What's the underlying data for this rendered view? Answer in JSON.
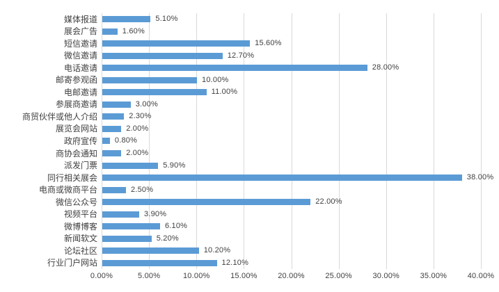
{
  "chart_data": {
    "type": "bar",
    "orientation": "horizontal",
    "title": "",
    "xlabel": "",
    "ylabel": "",
    "xlim": [
      0,
      40
    ],
    "grid": true,
    "legend": false,
    "bar_color": "#5b9bd5",
    "gridline_color": "#d9d9d9",
    "text_color": "#404040",
    "x_ticks": [
      "0.00%",
      "5.00%",
      "10.00%",
      "15.00%",
      "20.00%",
      "25.00%",
      "30.00%",
      "35.00%",
      "40.00%"
    ],
    "x_tick_values": [
      0,
      5,
      10,
      15,
      20,
      25,
      30,
      35,
      40
    ],
    "categories": [
      "媒体报道",
      "展会广告",
      "短信邀请",
      "微信邀请",
      "电话邀请",
      "邮寄参观函",
      "电邮邀请",
      "参展商邀请",
      "商贸伙伴或他人介绍",
      "展览会网站",
      "政府宣传",
      "商协会通知",
      "派发门票",
      "同行相关展会",
      "电商或微商平台",
      "微信公众号",
      "视频平台",
      "微博博客",
      "新闻软文",
      "论坛社区",
      "行业门户网站"
    ],
    "values": [
      5.1,
      1.6,
      15.6,
      12.7,
      28.0,
      10.0,
      11.0,
      3.0,
      2.3,
      2.0,
      0.8,
      2.0,
      5.9,
      38.0,
      2.5,
      22.0,
      3.9,
      6.1,
      5.2,
      10.2,
      12.1
    ],
    "data_labels": [
      "5.10%",
      "1.60%",
      "15.60%",
      "12.70%",
      "28.00%",
      "10.00%",
      "11.00%",
      "3.00%",
      "2.30%",
      "2.00%",
      "0.80%",
      "2.00%",
      "5.90%",
      "38.00%",
      "2.50%",
      "22.00%",
      "3.90%",
      "6.10%",
      "5.20%",
      "10.20%",
      "12.10%"
    ]
  }
}
